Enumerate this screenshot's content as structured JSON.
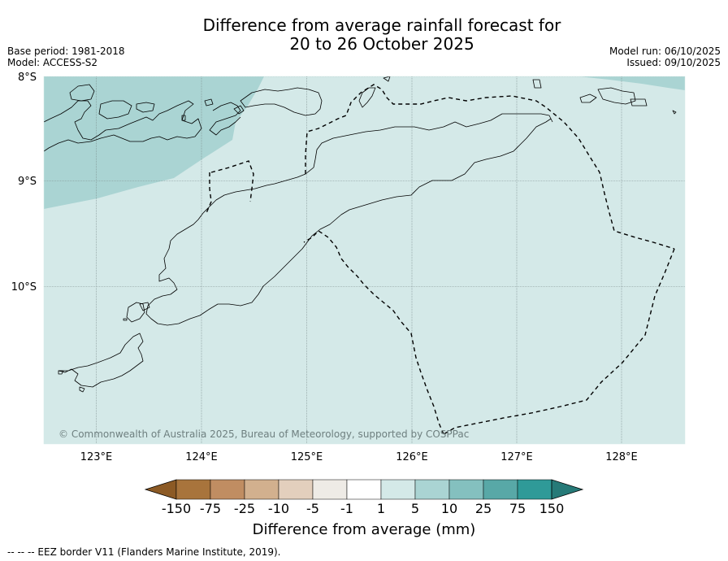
{
  "title_line1": "Difference from average rainfall forecast for",
  "title_line2": "20 to 26 October 2025",
  "base_period": "Base period: 1981-2018",
  "model": "Model: ACCESS-S2",
  "model_run": "Model run: 06/10/2025",
  "issued": "Issued: 09/10/2025",
  "latitude_labels": [
    "8°S",
    "9°S",
    "10°S"
  ],
  "longitude_labels": [
    "123°E",
    "124°E",
    "125°E",
    "126°E",
    "127°E",
    "128°E"
  ],
  "copyright": "© Commonwealth of Australia 2025, Bureau of Meteorology, supported by COSPPac",
  "colorbar": {
    "tick_labels": [
      "-150",
      "-75",
      "-25",
      "-10",
      "-5",
      "-1",
      "1",
      "5",
      "10",
      "25",
      "75",
      "150"
    ],
    "colors": [
      "#8c5a25",
      "#a8743c",
      "#c08d62",
      "#d2b08e",
      "#e3cfbd",
      "#eeebe6",
      "#ffffff",
      "#d4e9e8",
      "#aad4d3",
      "#84c0bf",
      "#58a8a7",
      "#2f9a98",
      "#267a78"
    ],
    "label": "Difference from average (mm)"
  },
  "map_colors": {
    "background": "#d4e9e8",
    "wet_region": "#aad4d3",
    "coast": "#000000"
  },
  "legend_note": "--  --  -- EEZ border V11 (Flanders Marine Institute, 2019)."
}
